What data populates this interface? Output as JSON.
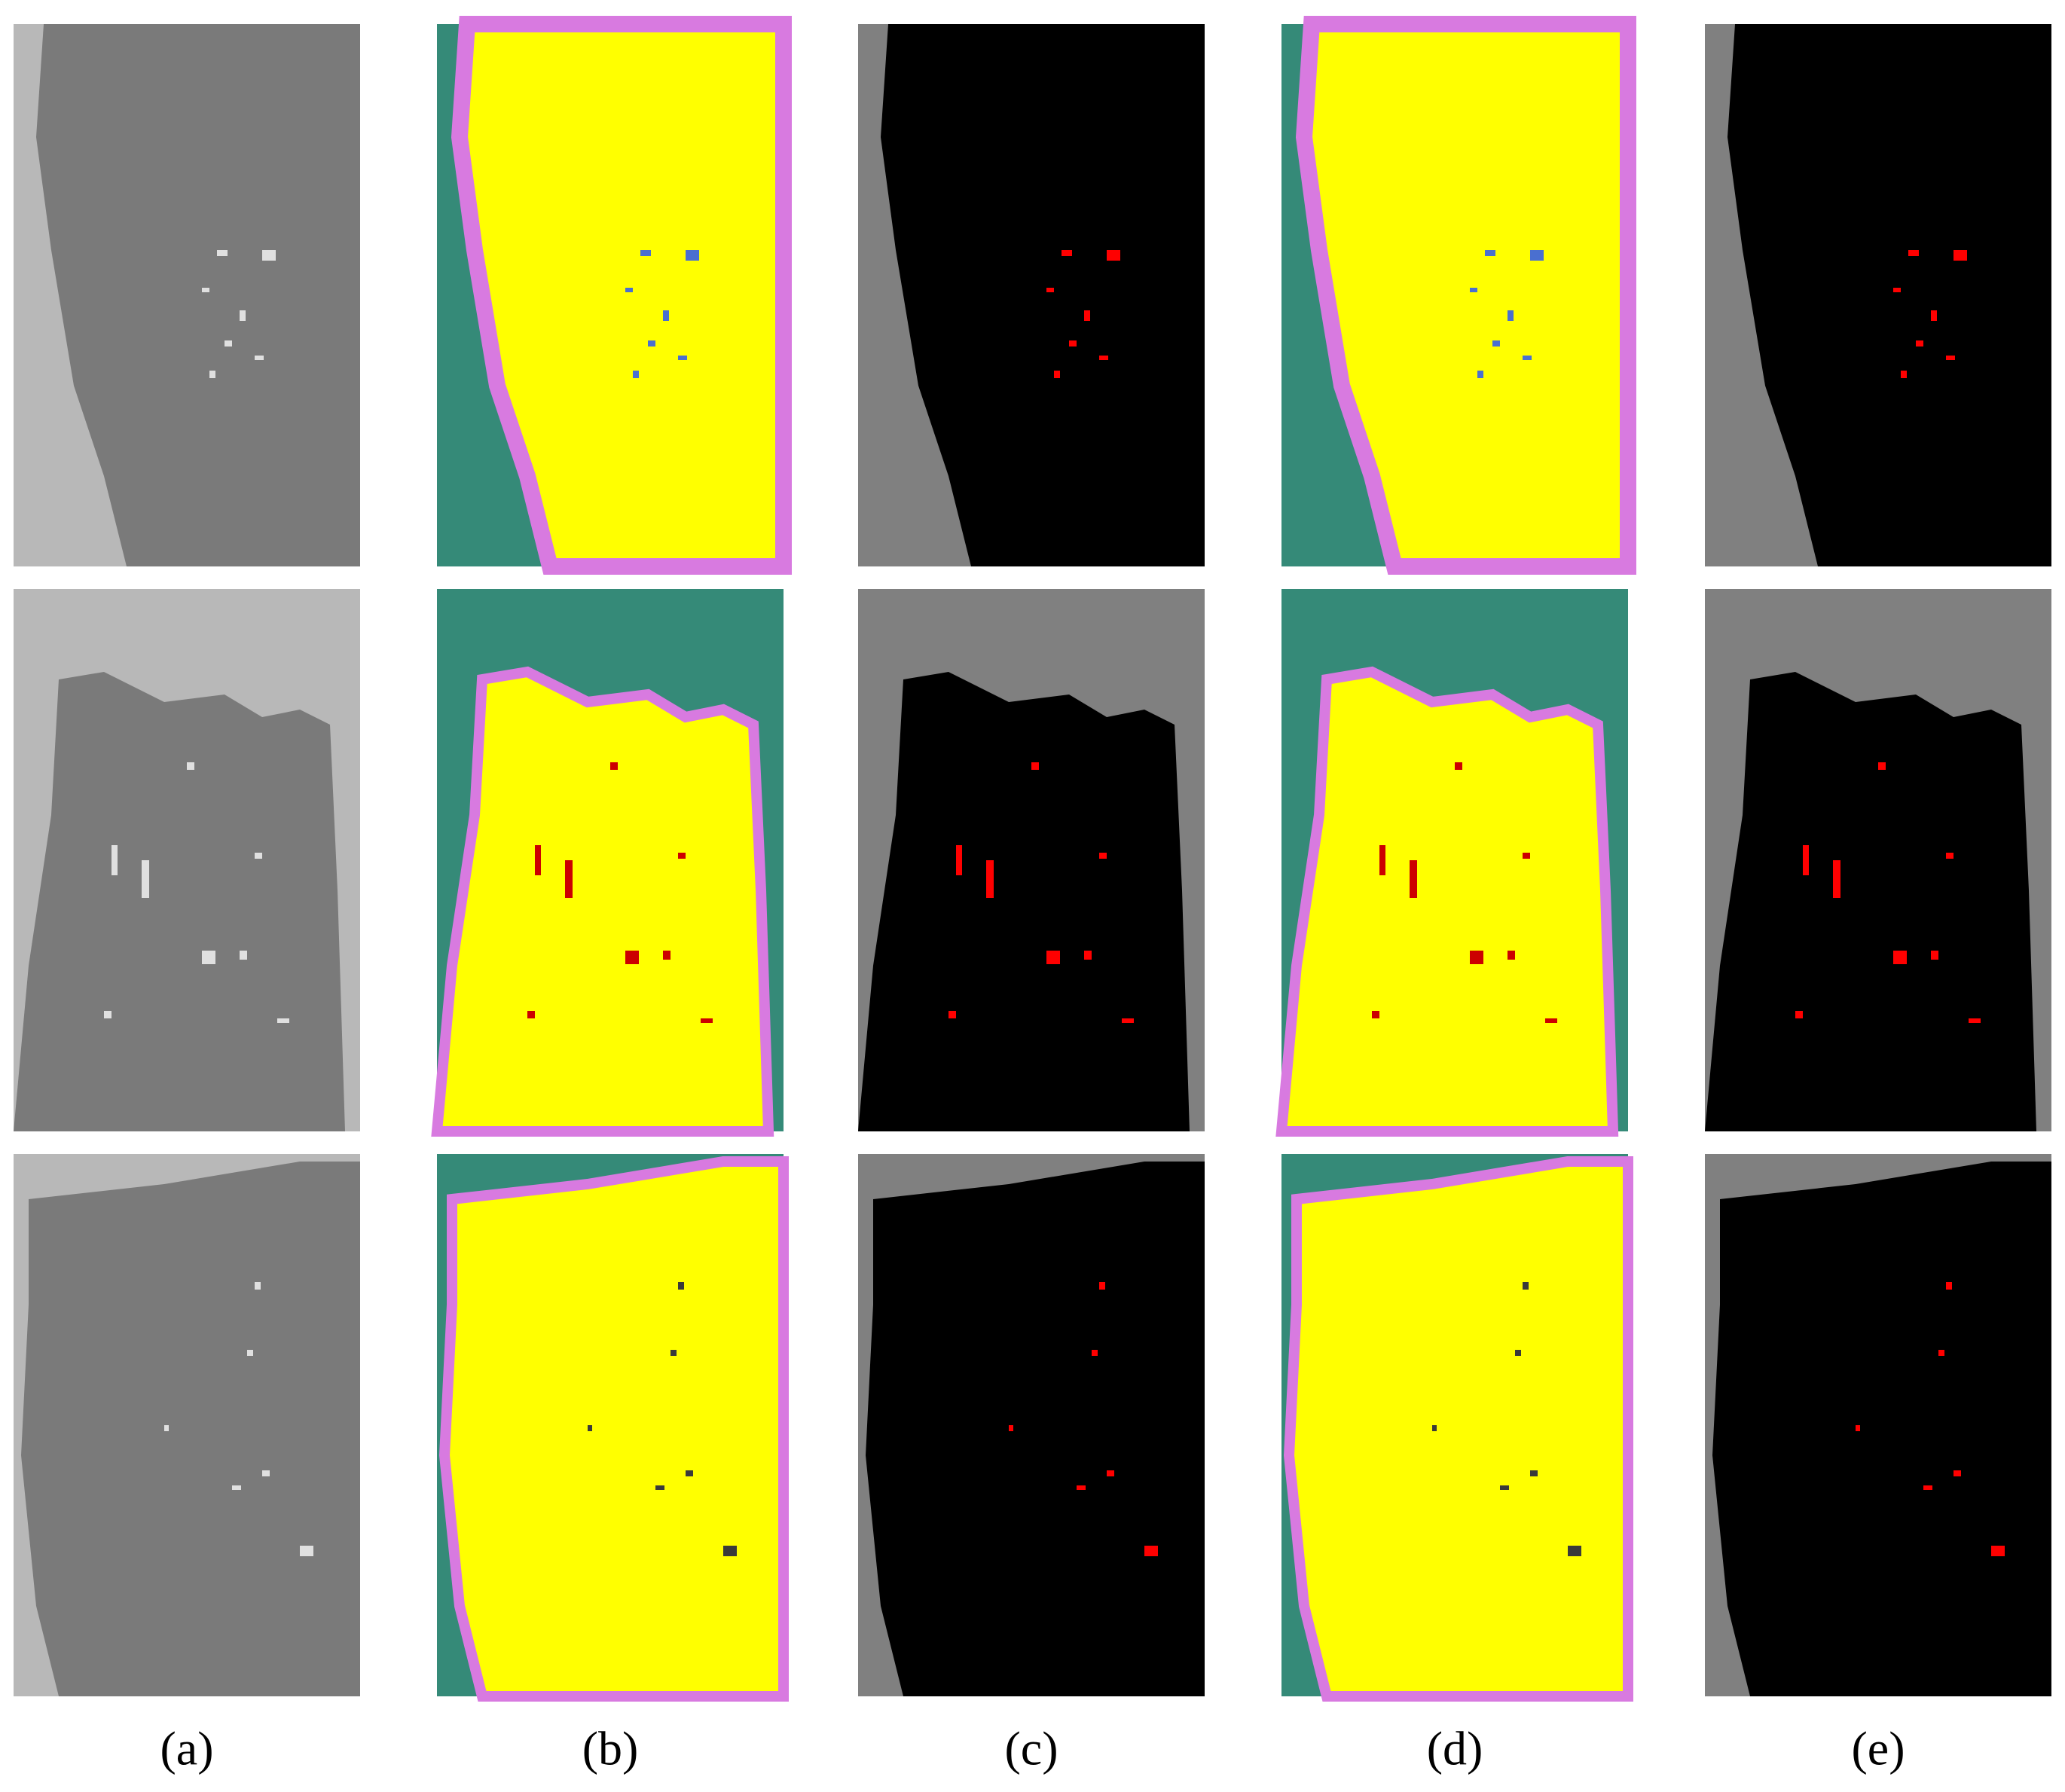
{
  "figure": {
    "panel_labels": [
      "(a)",
      "(b)",
      "(c)",
      "(d)",
      "(e)"
    ]
  }
}
